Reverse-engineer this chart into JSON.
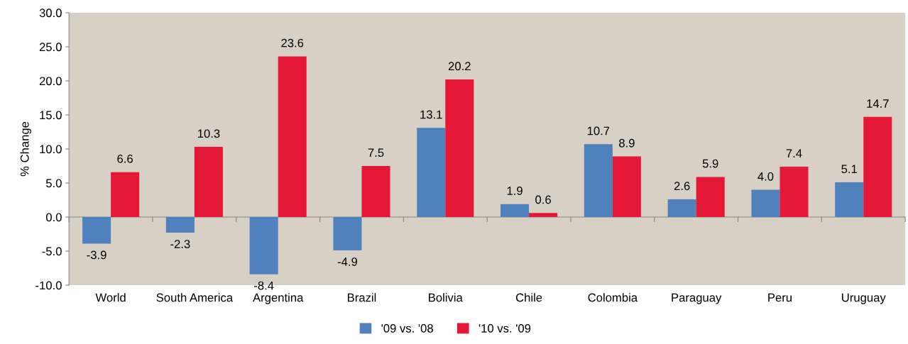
{
  "chart_data": {
    "type": "bar",
    "ylabel": "% Change",
    "categories": [
      "World",
      "South America",
      "Argentina",
      "Brazil",
      "Bolivia",
      "Chile",
      "Colombia",
      "Paraguay",
      "Peru",
      "Uruguay"
    ],
    "series": [
      {
        "name": "'09 vs. '08",
        "color": "#4f81bd",
        "values": [
          -3.9,
          -2.3,
          -8.4,
          -4.9,
          13.1,
          1.9,
          10.7,
          2.6,
          4.0,
          5.1
        ],
        "value_labels": [
          "-3.9",
          "-2.3",
          "-8.4",
          "-4.9",
          "13.1",
          "1.9",
          "10.7",
          "2.6",
          "4.0",
          "5.1"
        ]
      },
      {
        "name": "'10 vs. '09",
        "color": "#e31937",
        "values": [
          6.6,
          10.3,
          23.6,
          7.5,
          20.2,
          0.6,
          8.9,
          5.9,
          7.4,
          14.7
        ],
        "value_labels": [
          "6.6",
          "10.3",
          "23.6",
          "7.5",
          "20.2",
          "0.6",
          "8.9",
          "5.9",
          "7.4",
          "14.7"
        ]
      }
    ],
    "ylim": [
      -10,
      30
    ],
    "yticks": [
      {
        "value": -10,
        "label": "-10.0"
      },
      {
        "value": -5,
        "label": "-5.0"
      },
      {
        "value": 0,
        "label": "0.0"
      },
      {
        "value": 5,
        "label": "5.0"
      },
      {
        "value": 10,
        "label": "10.0"
      },
      {
        "value": 15,
        "label": "15.0"
      },
      {
        "value": 20,
        "label": "20.0"
      },
      {
        "value": 25,
        "label": "25.0"
      },
      {
        "value": 30,
        "label": "30.0"
      }
    ],
    "legend": "bottom"
  }
}
